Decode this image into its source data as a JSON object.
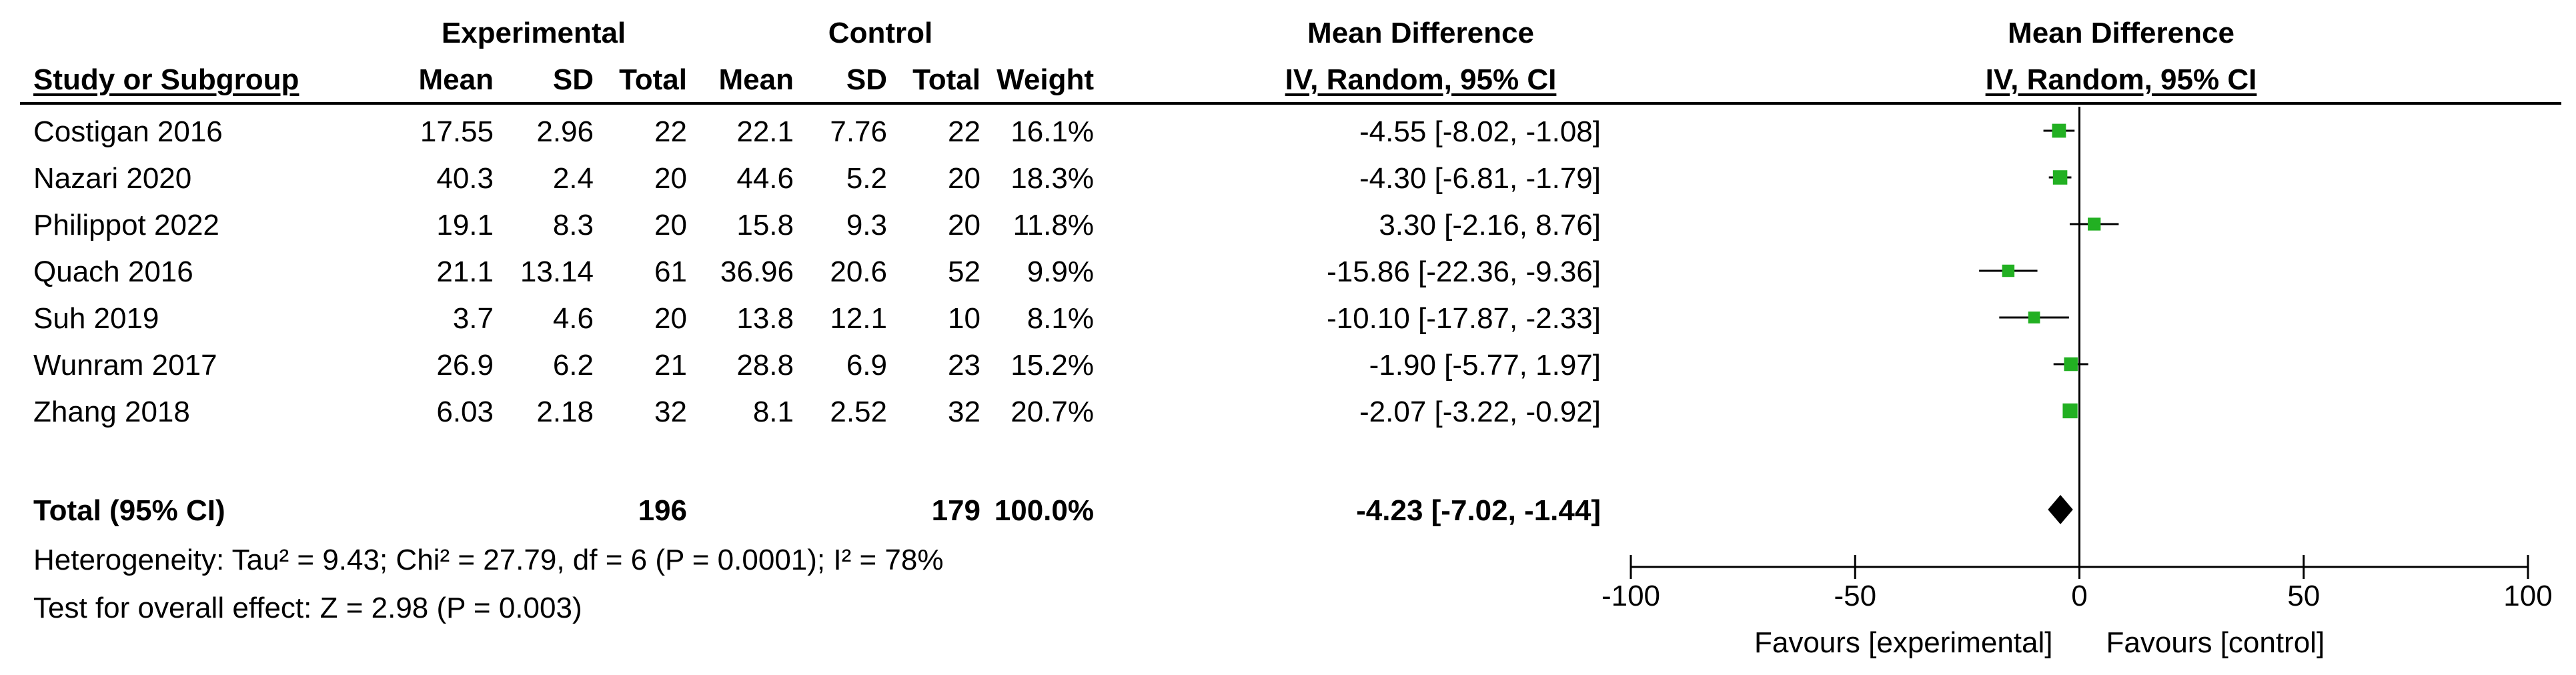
{
  "header": {
    "group_experimental": "Experimental",
    "group_control": "Control",
    "group_md_table": "Mean Difference",
    "group_md_plot": "Mean Difference",
    "col_study": "Study or Subgroup",
    "col_exp_mean": "Mean",
    "col_exp_sd": "SD",
    "col_exp_total": "Total",
    "col_ctl_mean": "Mean",
    "col_ctl_sd": "SD",
    "col_ctl_total": "Total",
    "col_weight": "Weight",
    "col_ci": "IV, Random, 95% CI",
    "plot_subtitle": "IV, Random, 95% CI"
  },
  "studies": [
    {
      "name": "Costigan 2016",
      "exp_mean": "17.55",
      "exp_sd": "2.96",
      "exp_total": "22",
      "ctl_mean": "22.1",
      "ctl_sd": "7.76",
      "ctl_total": "22",
      "weight": "16.1%",
      "ci": "-4.55 [-8.02, -1.08]"
    },
    {
      "name": "Nazari 2020",
      "exp_mean": "40.3",
      "exp_sd": "2.4",
      "exp_total": "20",
      "ctl_mean": "44.6",
      "ctl_sd": "5.2",
      "ctl_total": "20",
      "weight": "18.3%",
      "ci": "-4.30 [-6.81, -1.79]"
    },
    {
      "name": "Philippot 2022",
      "exp_mean": "19.1",
      "exp_sd": "8.3",
      "exp_total": "20",
      "ctl_mean": "15.8",
      "ctl_sd": "9.3",
      "ctl_total": "20",
      "weight": "11.8%",
      "ci": "3.30 [-2.16, 8.76]"
    },
    {
      "name": "Quach 2016",
      "exp_mean": "21.1",
      "exp_sd": "13.14",
      "exp_total": "61",
      "ctl_mean": "36.96",
      "ctl_sd": "20.6",
      "ctl_total": "52",
      "weight": "9.9%",
      "ci": "-15.86 [-22.36, -9.36]"
    },
    {
      "name": "Suh 2019",
      "exp_mean": "3.7",
      "exp_sd": "4.6",
      "exp_total": "20",
      "ctl_mean": "13.8",
      "ctl_sd": "12.1",
      "ctl_total": "10",
      "weight": "8.1%",
      "ci": "-10.10 [-17.87, -2.33]"
    },
    {
      "name": "Wunram 2017",
      "exp_mean": "26.9",
      "exp_sd": "6.2",
      "exp_total": "21",
      "ctl_mean": "28.8",
      "ctl_sd": "6.9",
      "ctl_total": "23",
      "weight": "15.2%",
      "ci": "-1.90 [-5.77, 1.97]"
    },
    {
      "name": "Zhang 2018",
      "exp_mean": "6.03",
      "exp_sd": "2.18",
      "exp_total": "32",
      "ctl_mean": "8.1",
      "ctl_sd": "2.52",
      "ctl_total": "32",
      "weight": "20.7%",
      "ci": "-2.07 [-3.22, -0.92]"
    }
  ],
  "total": {
    "label": "Total (95% CI)",
    "exp_total": "196",
    "ctl_total": "179",
    "weight": "100.0%",
    "ci": "-4.23 [-7.02, -1.44]"
  },
  "footer": {
    "heterogeneity": "Heterogeneity: Tau² = 9.43; Chi² = 27.79, df = 6 (P = 0.0001); I² = 78%",
    "overall_effect": "Test for overall effect: Z = 2.98 (P = 0.003)",
    "favours_left": "Favours [experimental]",
    "favours_right": "Favours [control]"
  },
  "colors": {
    "marker": "#22b022",
    "line": "#000000",
    "diamond": "#000000"
  },
  "chart_data": {
    "type": "forest",
    "xlim": [
      -100,
      100
    ],
    "x_ticks": [
      -100,
      -50,
      0,
      50,
      100
    ],
    "x_tick_labels": [
      "-100",
      "-50",
      "0",
      "50",
      "100"
    ],
    "studies": [
      {
        "name": "Costigan 2016",
        "md": -4.55,
        "lo": -8.02,
        "hi": -1.08,
        "weight": 16.1
      },
      {
        "name": "Nazari 2020",
        "md": -4.3,
        "lo": -6.81,
        "hi": -1.79,
        "weight": 18.3
      },
      {
        "name": "Philippot 2022",
        "md": 3.3,
        "lo": -2.16,
        "hi": 8.76,
        "weight": 11.8
      },
      {
        "name": "Quach 2016",
        "md": -15.86,
        "lo": -22.36,
        "hi": -9.36,
        "weight": 9.9
      },
      {
        "name": "Suh 2019",
        "md": -10.1,
        "lo": -17.87,
        "hi": -2.33,
        "weight": 8.1
      },
      {
        "name": "Wunram 2017",
        "md": -1.9,
        "lo": -5.77,
        "hi": 1.97,
        "weight": 15.2
      },
      {
        "name": "Zhang 2018",
        "md": -2.07,
        "lo": -3.22,
        "hi": -0.92,
        "weight": 20.7
      }
    ],
    "pooled": {
      "md": -4.23,
      "lo": -7.02,
      "hi": -1.44
    }
  }
}
